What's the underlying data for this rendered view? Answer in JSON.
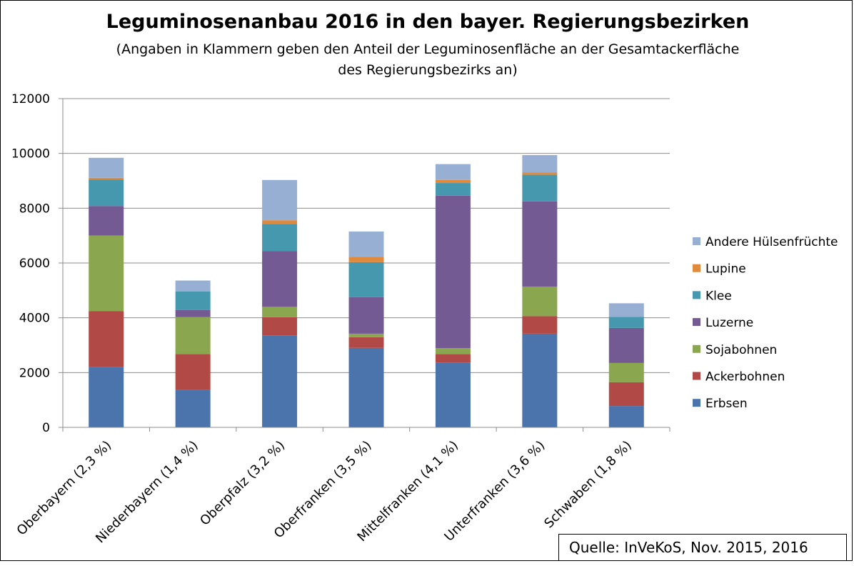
{
  "chart_data": {
    "type": "bar",
    "stacked": true,
    "title": "Leguminosenanbau 2016 in den bayer. Regierungsbezirken",
    "subtitle_lines": [
      "(Angaben in Klammern geben den Anteil der Leguminosenfläche an der Gesamtackerfläche",
      "des Regierungsbezirks an)"
    ],
    "categories": [
      "Oberbayern (2,3 %)",
      "Niederbayern (1,4 %)",
      "Oberpfalz (3,2 %)",
      "Oberfranken (3,5 %)",
      "Mittelfranken (4,1 %)",
      "Unterfranken (3,6 %)",
      "Schwaben (1,8 %)"
    ],
    "ylim": [
      0,
      12000
    ],
    "yticks": [
      "0",
      "2000",
      "4000",
      "6000",
      "8000",
      "10000",
      "12000"
    ],
    "grid": true,
    "legend_position": "right",
    "series": [
      {
        "name": "Erbsen",
        "color": "#4a74ab",
        "values": [
          2200,
          1380,
          3360,
          2900,
          2370,
          3420,
          780
        ]
      },
      {
        "name": "Ackerbohnen",
        "color": "#b14a47",
        "values": [
          2040,
          1300,
          660,
          390,
          310,
          640,
          870
        ]
      },
      {
        "name": "Sojabohnen",
        "color": "#8aa64e",
        "values": [
          2760,
          1350,
          380,
          130,
          210,
          1080,
          700
        ]
      },
      {
        "name": "Luzerne",
        "color": "#735a93",
        "values": [
          1080,
          250,
          2030,
          1330,
          5570,
          3110,
          1280
        ]
      },
      {
        "name": "Klee",
        "color": "#4598ad",
        "values": [
          970,
          680,
          1000,
          1280,
          460,
          970,
          400
        ]
      },
      {
        "name": "Lupine",
        "color": "#e08a3e",
        "values": [
          60,
          10,
          130,
          200,
          110,
          80,
          10
        ]
      },
      {
        "name": "Andere Hülsenfrüchte",
        "color": "#98afd4",
        "values": [
          730,
          390,
          1470,
          920,
          580,
          640,
          490
        ]
      }
    ],
    "source": "Quelle: InVeKoS, Nov. 2015, 2016"
  }
}
